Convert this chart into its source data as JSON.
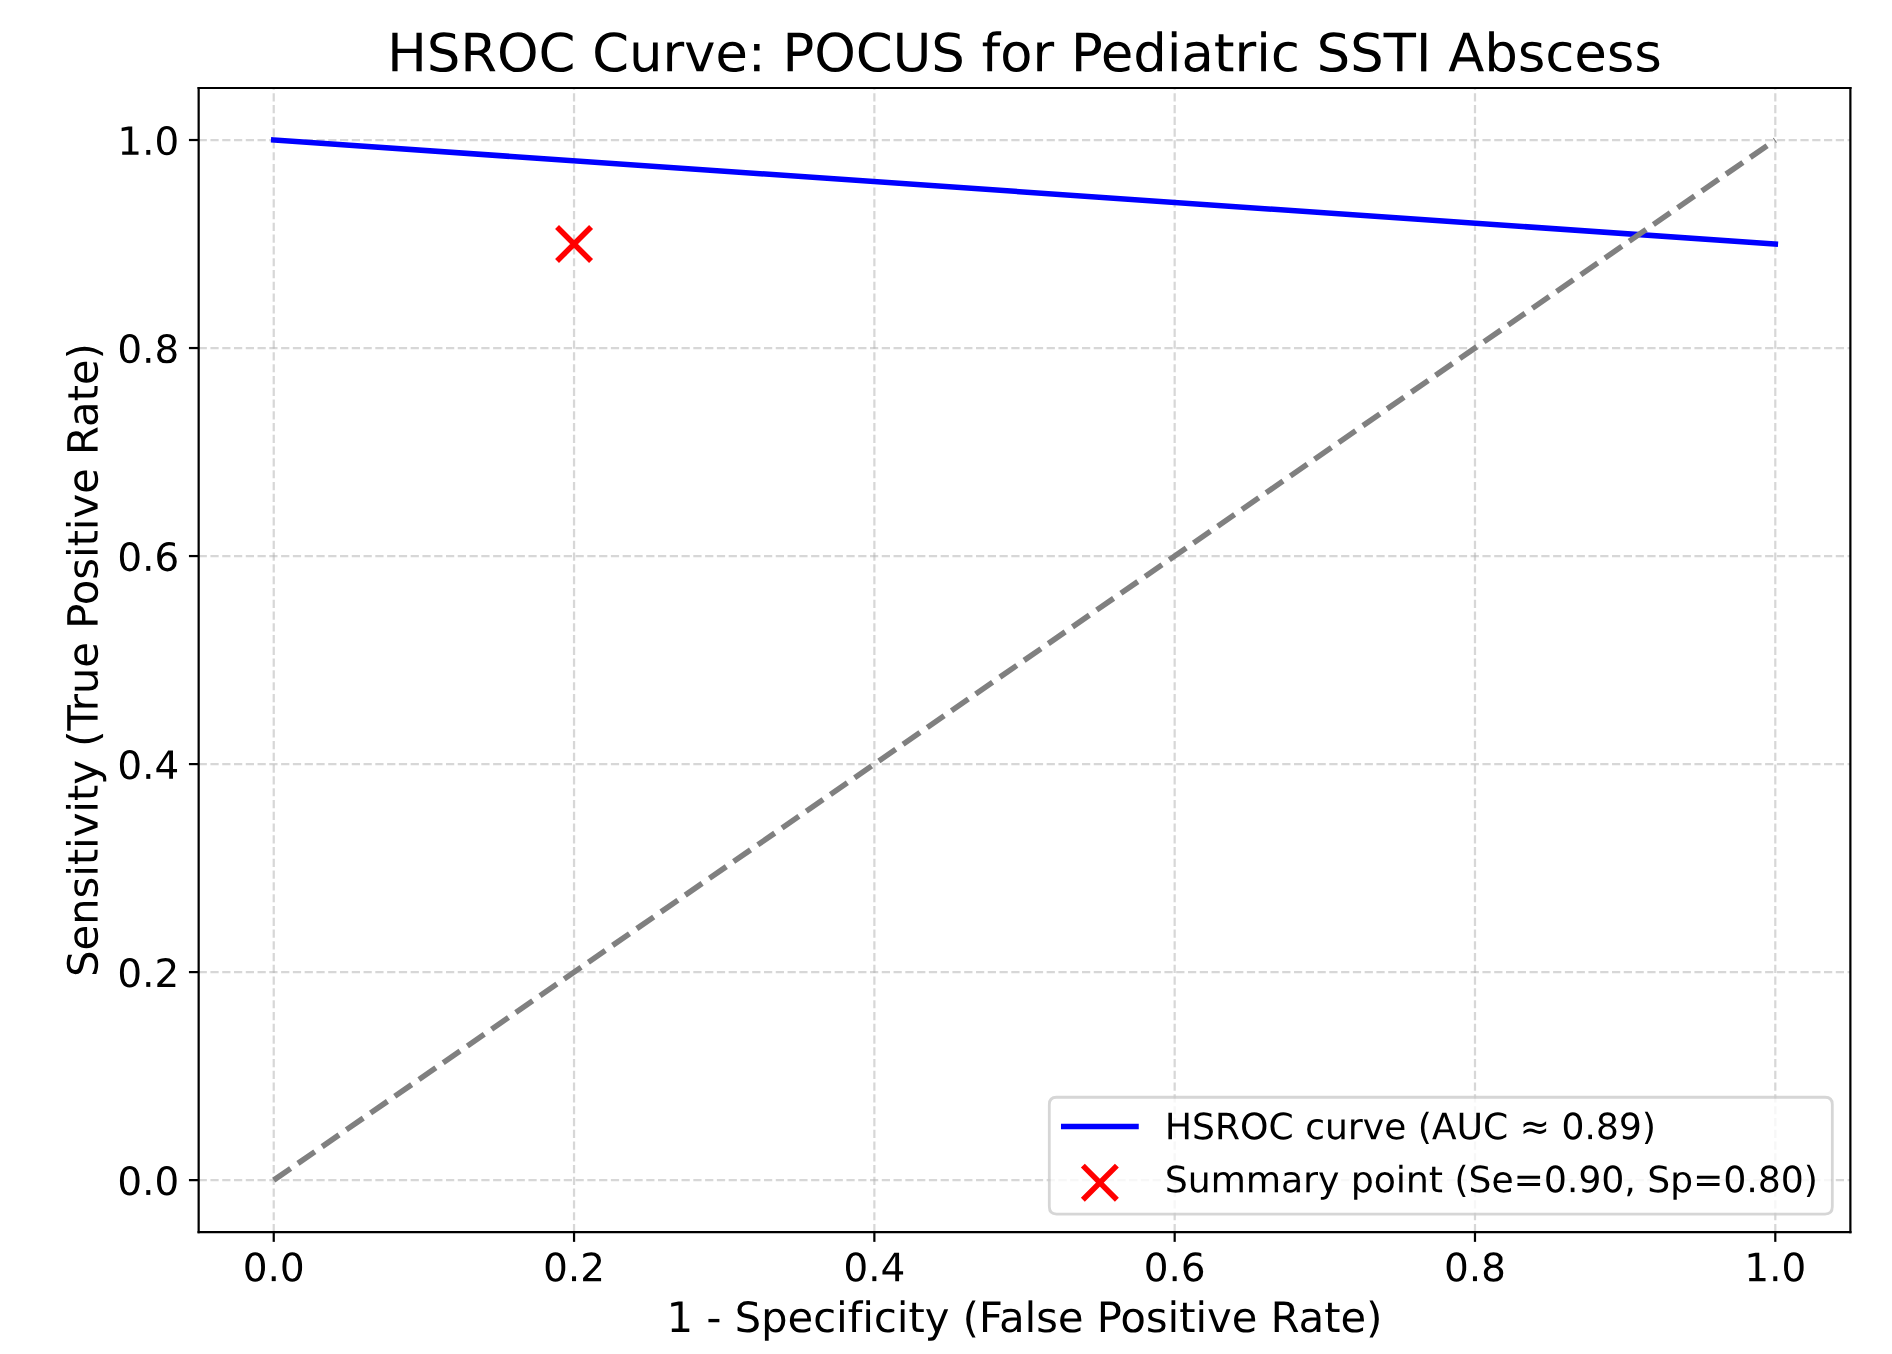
{
  "chart_data": {
    "type": "line",
    "title": "HSROC Curve: POCUS for Pediatric SSTI Abscess",
    "xlabel": "1 - Specificity (False Positive Rate)",
    "ylabel": "Sensitivity (True Positive Rate)",
    "series": [
      {
        "name": "HSROC curve (AUC ≈ 0.89)",
        "color": "#0000ff",
        "x": [
          0,
          1
        ],
        "values": [
          1.0,
          0.9
        ],
        "line_style": "solid",
        "marker": "none"
      },
      {
        "color": "#808080",
        "x": [
          0,
          1
        ],
        "values": [
          0,
          1
        ],
        "line_style": "dashed",
        "marker": "none"
      },
      {
        "name": "Summary point (Se=0.90, Sp=0.80)",
        "type": "scatter",
        "color": "#ff0000",
        "x": [
          0.2
        ],
        "values": [
          0.9
        ],
        "marker": "cross"
      }
    ],
    "xlim": [
      -0.05,
      1.05
    ],
    "ylim": [
      -0.05,
      1.05
    ],
    "xticks": [
      {
        "value": 0,
        "label": "0.0"
      },
      0.2,
      0.4,
      0.6,
      0.8,
      {
        "value": 1,
        "label": "1.0"
      }
    ],
    "yticks": [
      {
        "value": 0,
        "label": "0.0"
      },
      0.2,
      0.4,
      0.6,
      0.8,
      {
        "value": 1,
        "label": "1.0"
      }
    ],
    "grid": true,
    "legend": "bottom right"
  }
}
